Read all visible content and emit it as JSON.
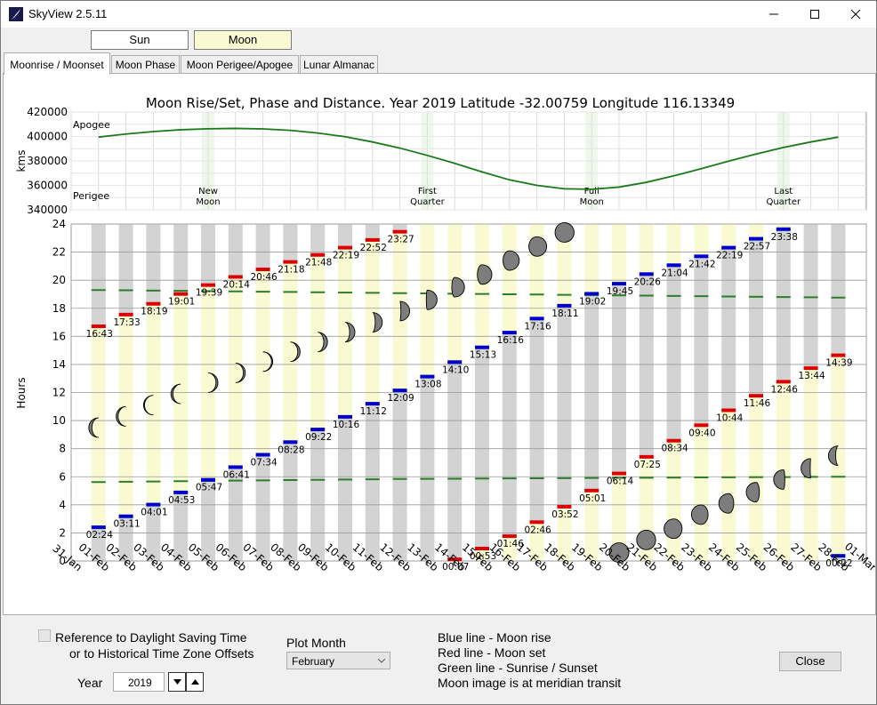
{
  "window": {
    "title": "SkyView   2.5.11"
  },
  "top_buttons": {
    "sun": "Sun",
    "moon": "Moon"
  },
  "tabs": [
    "Moonrise / Moonset",
    "Moon Phase",
    "Moon Perigee/Apogee",
    "Lunar Almanac"
  ],
  "chart_data": [
    {
      "type": "line",
      "title": "Moon Rise/Set, Phase and Distance.      Year 2019    Latitude -32.00759    Longitude 116.13349",
      "ylabel": "kms",
      "ylim": [
        340000,
        420000
      ],
      "yticks": [
        "420000",
        "400000",
        "380000",
        "360000",
        "340000"
      ],
      "y_annotations": [
        "Apogee",
        "Perigee"
      ],
      "phase_labels": [
        {
          "day": 5,
          "line1": "New",
          "line2": "Moon"
        },
        {
          "day": 13,
          "line1": "First",
          "line2": "Quarter"
        },
        {
          "day": 19,
          "line1": "Full",
          "line2": "Moon"
        },
        {
          "day": 26,
          "line1": "Last",
          "line2": "Quarter"
        }
      ],
      "series": [
        {
          "x": [
            1,
            2,
            3,
            4,
            5,
            6,
            7,
            8,
            9,
            10,
            11,
            12,
            13,
            14,
            15,
            16,
            17,
            18,
            19,
            20,
            21,
            22,
            23,
            24,
            25,
            26,
            27,
            28
          ],
          "values": [
            399500,
            402000,
            404000,
            405500,
            406300,
            406600,
            406200,
            405000,
            402800,
            399800,
            395500,
            390500,
            384500,
            378000,
            371000,
            364500,
            360000,
            357200,
            356800,
            358600,
            362500,
            367800,
            373600,
            379800,
            385600,
            391000,
            395500,
            399500
          ]
        }
      ],
      "line_color": "#1a7a1a"
    },
    {
      "type": "table",
      "ylabel": "Hours",
      "ylim": [
        0,
        24
      ],
      "yticks": [
        0,
        2,
        4,
        6,
        8,
        10,
        12,
        14,
        16,
        18,
        20,
        22,
        24
      ],
      "x_labels": [
        "31-Jan",
        "01-Feb",
        "02-Feb",
        "03-Feb",
        "04-Feb",
        "05-Feb",
        "06-Feb",
        "07-Feb",
        "08-Feb",
        "09-Feb",
        "10-Feb",
        "11-Feb",
        "12-Feb",
        "13-Feb",
        "14-Feb",
        "15-Feb",
        "16-Feb",
        "17-Feb",
        "18-Feb",
        "19-Feb",
        "20-Feb",
        "21-Feb",
        "22-Feb",
        "23-Feb",
        "24-Feb",
        "25-Feb",
        "26-Feb",
        "27-Feb",
        "28-Feb",
        "01-Mar"
      ],
      "colors": {
        "rise": "#0000cc",
        "set": "#dd0000",
        "sun": "#2e7d2e",
        "moon_up": "#fafad2",
        "moon_down": "#d3d3d3"
      },
      "days": [
        {
          "rise": "02:24",
          "set": "16:43",
          "sunrise": 5.62,
          "sunset": 19.3,
          "transit": 9.5,
          "illum": 0.16,
          "waxing": false
        },
        {
          "rise": "03:11",
          "set": "17:33",
          "sunrise": 5.64,
          "sunset": 19.28,
          "transit": 10.3,
          "illum": 0.1,
          "waxing": false
        },
        {
          "rise": "04:01",
          "set": "18:19",
          "sunrise": 5.66,
          "sunset": 19.26,
          "transit": 11.1,
          "illum": 0.05,
          "waxing": false
        },
        {
          "rise": "04:53",
          "set": "19:01",
          "sunrise": 5.68,
          "sunset": 19.24,
          "transit": 11.9,
          "illum": 0.02,
          "waxing": false
        },
        {
          "rise": "05:47",
          "set": "19:39",
          "sunrise": 5.7,
          "sunset": 19.22,
          "transit": 12.7,
          "illum": 0.0,
          "waxing": true
        },
        {
          "rise": "06:41",
          "set": "20:14",
          "sunrise": 5.72,
          "sunset": 19.2,
          "transit": 13.4,
          "illum": 0.02,
          "waxing": true
        },
        {
          "rise": "07:34",
          "set": "20:46",
          "sunrise": 5.74,
          "sunset": 19.18,
          "transit": 14.2,
          "illum": 0.06,
          "waxing": true
        },
        {
          "rise": "08:28",
          "set": "21:18",
          "sunrise": 5.76,
          "sunset": 19.16,
          "transit": 14.9,
          "illum": 0.12,
          "waxing": true
        },
        {
          "rise": "09:22",
          "set": "21:48",
          "sunrise": 5.78,
          "sunset": 19.14,
          "transit": 15.6,
          "illum": 0.19,
          "waxing": true
        },
        {
          "rise": "10:16",
          "set": "22:19",
          "sunrise": 5.8,
          "sunset": 19.12,
          "transit": 16.3,
          "illum": 0.27,
          "waxing": true
        },
        {
          "rise": "11:12",
          "set": "22:52",
          "sunrise": 5.82,
          "sunset": 19.1,
          "transit": 17.0,
          "illum": 0.36,
          "waxing": true
        },
        {
          "rise": "12:09",
          "set": "23:27",
          "sunrise": 5.84,
          "sunset": 19.08,
          "transit": 17.8,
          "illum": 0.45,
          "waxing": true
        },
        {
          "rise": "13:08",
          "set": "",
          "sunrise": 5.85,
          "sunset": 19.06,
          "transit": 18.6,
          "illum": 0.55,
          "waxing": true
        },
        {
          "rise": "14:10",
          "set": "00:07",
          "sunrise": 5.86,
          "sunset": 19.04,
          "transit": 19.5,
          "illum": 0.65,
          "waxing": true
        },
        {
          "rise": "15:13",
          "set": "00:53",
          "sunrise": 5.87,
          "sunset": 19.02,
          "transit": 20.4,
          "illum": 0.74,
          "waxing": true
        },
        {
          "rise": "16:16",
          "set": "01:46",
          "sunrise": 5.88,
          "sunset": 19.0,
          "transit": 21.4,
          "illum": 0.83,
          "waxing": true
        },
        {
          "rise": "17:16",
          "set": "02:46",
          "sunrise": 5.89,
          "sunset": 18.98,
          "transit": 22.4,
          "illum": 0.91,
          "waxing": true
        },
        {
          "rise": "18:11",
          "set": "03:52",
          "sunrise": 5.9,
          "sunset": 18.96,
          "transit": 23.4,
          "illum": 0.97,
          "waxing": true
        },
        {
          "rise": "19:02",
          "set": "05:01",
          "sunrise": 5.91,
          "sunset": 18.94,
          "transit": null,
          "illum": 1.0,
          "waxing": true
        },
        {
          "rise": "19:45",
          "set": "06:14",
          "sunrise": 5.92,
          "sunset": 18.92,
          "transit": 0.6,
          "illum": 1.0,
          "waxing": false
        },
        {
          "rise": "20:26",
          "set": "07:25",
          "sunrise": 5.93,
          "sunset": 18.9,
          "transit": 1.5,
          "illum": 0.97,
          "waxing": false
        },
        {
          "rise": "21:04",
          "set": "08:34",
          "sunrise": 5.94,
          "sunset": 18.88,
          "transit": 2.3,
          "illum": 0.92,
          "waxing": false
        },
        {
          "rise": "21:42",
          "set": "09:40",
          "sunrise": 5.95,
          "sunset": 18.86,
          "transit": 3.3,
          "illum": 0.85,
          "waxing": false
        },
        {
          "rise": "22:19",
          "set": "10:44",
          "sunrise": 5.96,
          "sunset": 18.84,
          "transit": 4.1,
          "illum": 0.76,
          "waxing": false
        },
        {
          "rise": "22:57",
          "set": "11:46",
          "sunrise": 5.97,
          "sunset": 18.82,
          "transit": 4.9,
          "illum": 0.67,
          "waxing": false
        },
        {
          "rise": "23:38",
          "set": "12:46",
          "sunrise": 5.98,
          "sunset": 18.8,
          "transit": 5.8,
          "illum": 0.57,
          "waxing": false
        },
        {
          "rise": "",
          "set": "13:44",
          "sunrise": 5.99,
          "sunset": 18.78,
          "transit": 6.6,
          "illum": 0.47,
          "waxing": false
        },
        {
          "rise": "00:22",
          "set": "14:39",
          "sunrise": 6.0,
          "sunset": 18.76,
          "transit": 7.5,
          "illum": 0.37,
          "waxing": false
        }
      ]
    }
  ],
  "bottom": {
    "dst_line1": "Reference to Daylight Saving Time",
    "dst_line2": "or to Historical Time Zone Offsets",
    "plot_month_label": "Plot Month",
    "plot_month_value": "February",
    "year_label": "Year",
    "year_value": "2019",
    "legend": [
      "Blue line - Moon rise",
      "Red line  - Moon set",
      "Green line  - Sunrise / Sunset",
      "Moon image is at meridian transit"
    ],
    "close": "Close"
  }
}
